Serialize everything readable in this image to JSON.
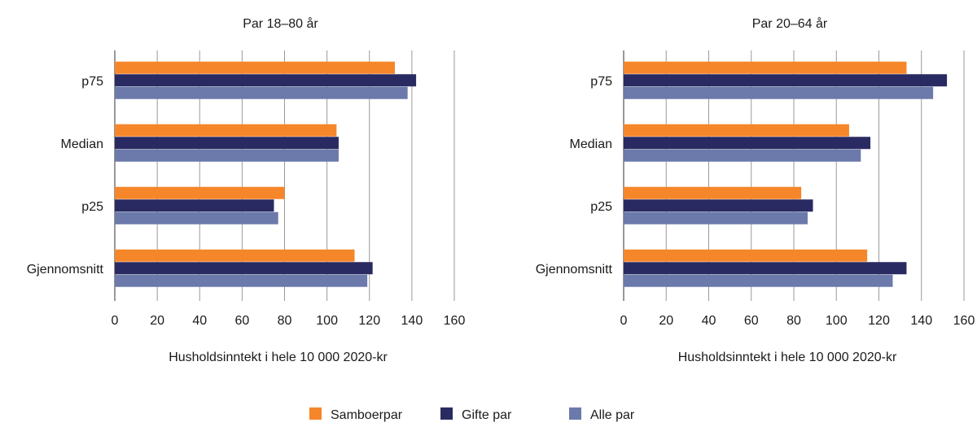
{
  "colors": {
    "Samboerpar": "#f5862a",
    "Gifte par": "#2a2a62",
    "Alle par": "#6b7aab"
  },
  "legend": [
    "Samboerpar",
    "Gifte par",
    "Alle par"
  ],
  "chart_data": [
    {
      "type": "bar",
      "orientation": "horizontal",
      "title": "Par 18–80 år",
      "xlabel": "Husholdsinntekt i hele 10 000 2020-kr",
      "ylabel": "",
      "xlim": [
        0,
        160
      ],
      "xticks": [
        0,
        20,
        40,
        60,
        80,
        100,
        120,
        140,
        160
      ],
      "grid": true,
      "legend_position": "bottom",
      "categories": [
        "p75",
        "Median",
        "p25",
        "Gjennomsnitt"
      ],
      "series": [
        {
          "name": "Samboerpar",
          "values": [
            132,
            104.5,
            80,
            113
          ]
        },
        {
          "name": "Gifte par",
          "values": [
            142,
            105.5,
            75,
            121.5
          ]
        },
        {
          "name": "Alle par",
          "values": [
            138,
            105.5,
            77,
            119
          ]
        }
      ]
    },
    {
      "type": "bar",
      "orientation": "horizontal",
      "title": "Par 20–64 år",
      "xlabel": "Husholdsinntekt i hele 10 000 2020-kr",
      "ylabel": "",
      "xlim": [
        0,
        160
      ],
      "xticks": [
        0,
        20,
        40,
        60,
        80,
        100,
        120,
        140,
        160
      ],
      "grid": true,
      "legend_position": "bottom",
      "categories": [
        "p75",
        "Median",
        "p25",
        "Gjennomsnitt"
      ],
      "series": [
        {
          "name": "Samboerpar",
          "values": [
            133,
            106,
            83.5,
            114.5
          ]
        },
        {
          "name": "Gifte par",
          "values": [
            152,
            116,
            89,
            133
          ]
        },
        {
          "name": "Alle par",
          "values": [
            145.5,
            111.5,
            86.5,
            126.5
          ]
        }
      ]
    }
  ]
}
